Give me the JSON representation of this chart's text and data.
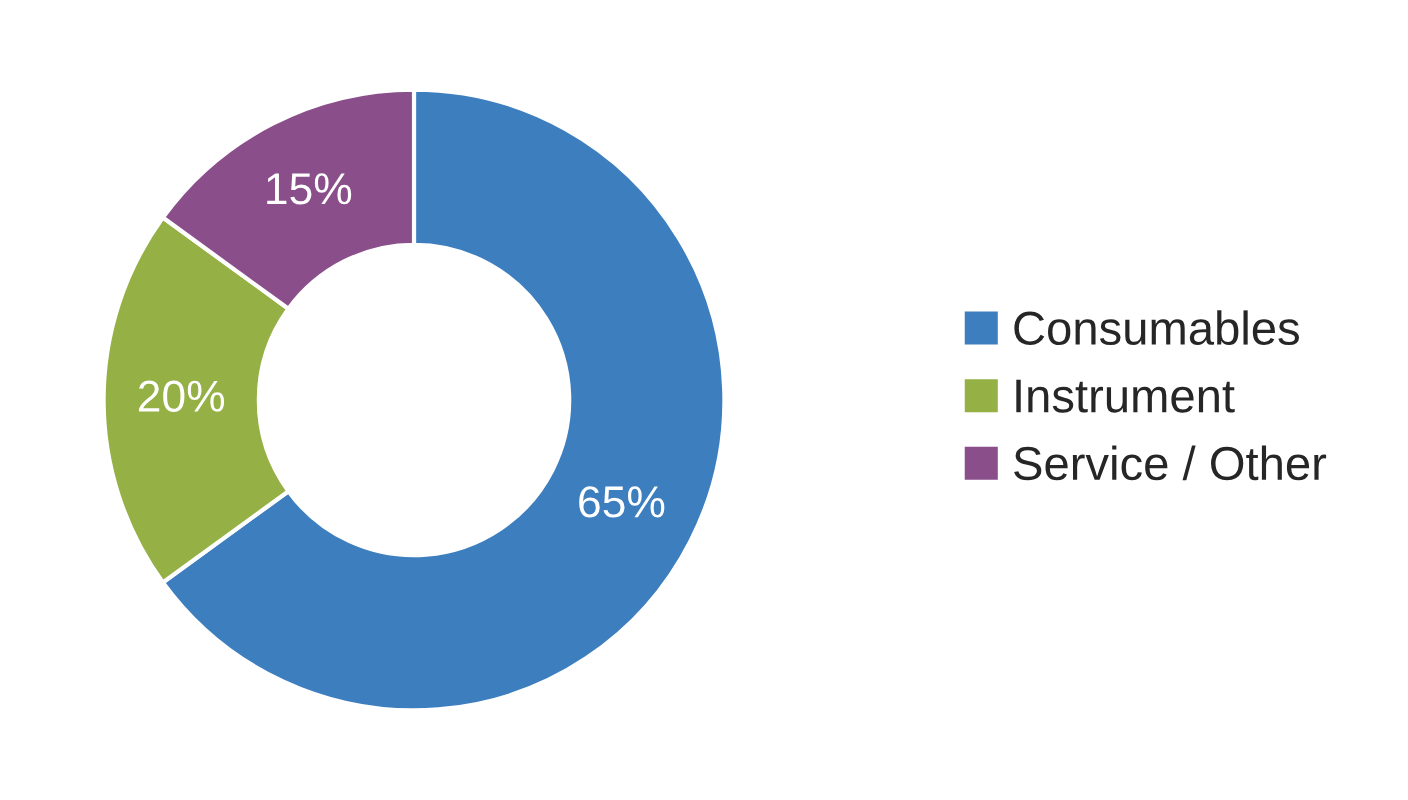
{
  "chart_data": {
    "type": "donut",
    "categories": [
      "Consumables",
      "Instrument",
      "Service / Other"
    ],
    "values": [
      65,
      20,
      15
    ],
    "colors": [
      "#3d7ebf",
      "#95b045",
      "#8a4f8a"
    ],
    "value_labels": [
      "65%",
      "20%",
      "15%"
    ],
    "legend": "right"
  }
}
